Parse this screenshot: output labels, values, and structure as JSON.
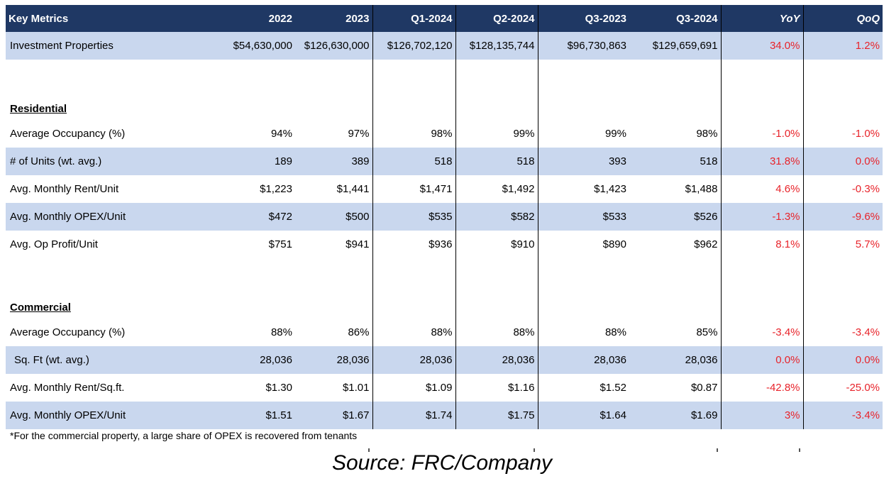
{
  "header": {
    "label": "Key Metrics",
    "columns": [
      "2022",
      "2023",
      "Q1-2024",
      "Q2-2024",
      "Q3-2023",
      "Q3-2024",
      "YoY",
      "QoQ"
    ]
  },
  "investment_properties": {
    "label": "Investment Properties",
    "values": [
      "$54,630,000",
      "$126,630,000",
      "$126,702,120",
      "$128,135,744",
      "$96,730,863",
      "$129,659,691",
      "34.0%",
      "1.2%"
    ]
  },
  "residential": {
    "title": "Residential",
    "rows": [
      {
        "label": "Average Occupancy (%)",
        "values": [
          "94%",
          "97%",
          "98%",
          "99%",
          "99%",
          "98%",
          "-1.0%",
          "-1.0%"
        ]
      },
      {
        "label": "# of Units (wt. avg.)",
        "values": [
          "189",
          "389",
          "518",
          "518",
          "393",
          "518",
          "31.8%",
          "0.0%"
        ]
      },
      {
        "label": "Avg. Monthly Rent/Unit",
        "values": [
          "$1,223",
          "$1,441",
          "$1,471",
          "$1,492",
          "$1,423",
          "$1,488",
          "4.6%",
          "-0.3%"
        ]
      },
      {
        "label": "Avg. Monthly OPEX/Unit",
        "values": [
          "$472",
          "$500",
          "$535",
          "$582",
          "$533",
          "$526",
          "-1.3%",
          "-9.6%"
        ]
      },
      {
        "label": "Avg. Op Profit/Unit",
        "values": [
          "$751",
          "$941",
          "$936",
          "$910",
          "$890",
          "$962",
          "8.1%",
          "5.7%"
        ]
      }
    ]
  },
  "commercial": {
    "title": "Commercial",
    "rows": [
      {
        "label": "Average Occupancy (%)",
        "values": [
          "88%",
          "86%",
          "88%",
          "88%",
          "88%",
          "85%",
          "-3.4%",
          "-3.4%"
        ]
      },
      {
        "label": "Sq. Ft (wt. avg.)",
        "values": [
          "28,036",
          "28,036",
          "28,036",
          "28,036",
          "28,036",
          "28,036",
          "0.0%",
          "0.0%"
        ]
      },
      {
        "label": "Avg. Monthly Rent/Sq.ft.",
        "values": [
          "$1.30",
          "$1.01",
          "$1.09",
          "$1.16",
          "$1.52",
          "$0.87",
          "-42.8%",
          "-25.0%"
        ]
      },
      {
        "label": "Avg. Monthly OPEX/Unit",
        "values": [
          "$1.51",
          "$1.67",
          "$1.74",
          "$1.75",
          "$1.64",
          "$1.69",
          "3%",
          "-3.4%"
        ]
      }
    ]
  },
  "footnote": "*For the commercial property,  a large share of OPEX is recovered from tenants",
  "source": "Source: FRC/Company",
  "colors": {
    "header_bg": "#1f3864",
    "row_shade": "#c9d7ee",
    "negative_red": "#e8232a"
  }
}
